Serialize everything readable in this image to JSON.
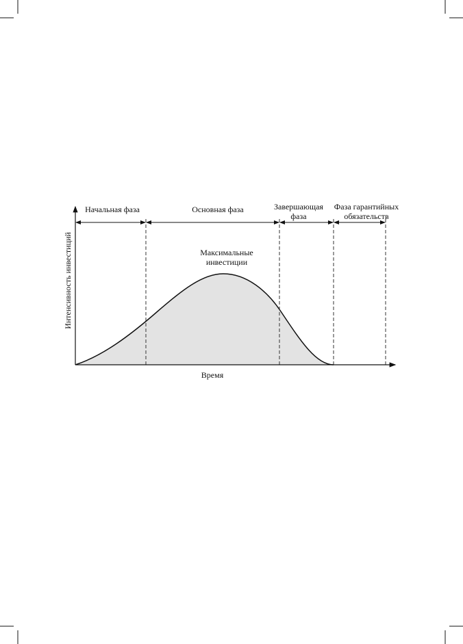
{
  "diagram": {
    "phases": [
      {
        "label_lines": [
          "Начальная фаза"
        ]
      },
      {
        "label_lines": [
          "Основная фаза"
        ]
      },
      {
        "label_lines": [
          "Завершающая",
          "фаза"
        ]
      },
      {
        "label_lines": [
          "Фаза гарантийных",
          "обязательств"
        ]
      }
    ],
    "peak_label_lines": [
      "Максимальные",
      "инвестиции"
    ],
    "y_axis_label": "Интенсивность инвестиций",
    "x_axis_label": "Время"
  }
}
